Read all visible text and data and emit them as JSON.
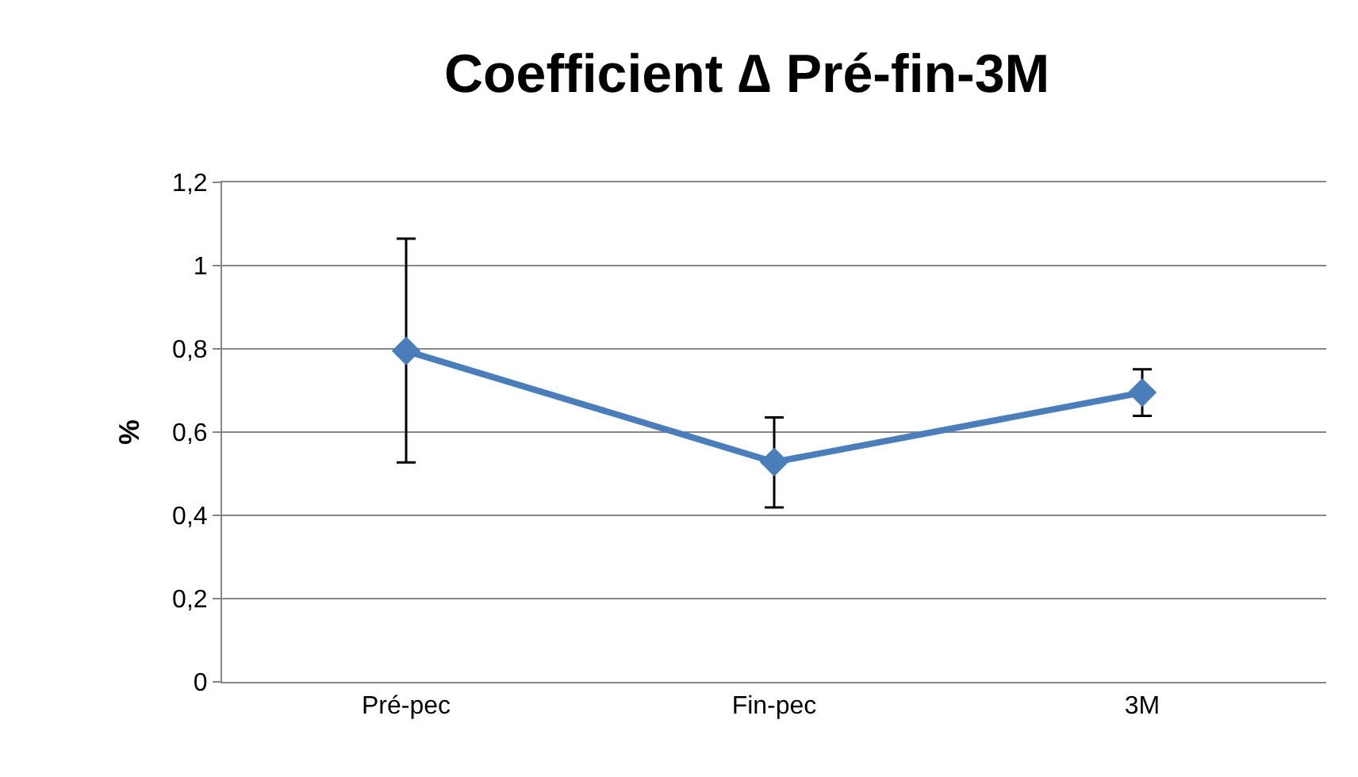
{
  "chart_data": {
    "type": "line",
    "title": "Coefficient ∆ Pré-fin-3M",
    "ylabel": "%",
    "categories": [
      "Pré-pec",
      "Fin-pec",
      "3M"
    ],
    "series": [
      {
        "color": "#4a7ebb",
        "values": [
          0.795,
          0.528,
          0.695
        ],
        "errors": [
          [
            0.527,
            1.065
          ],
          [
            0.419,
            0.635
          ],
          [
            0.639,
            0.751
          ]
        ]
      }
    ],
    "ylim": [
      0,
      1.2
    ],
    "yticks": [
      {
        "value": 0,
        "label": "0"
      },
      {
        "value": 0.2,
        "label": "0,2"
      },
      {
        "value": 0.4,
        "label": "0,4"
      },
      {
        "value": 0.6,
        "label": "0,6"
      },
      {
        "value": 0.8,
        "label": "0,8"
      },
      {
        "value": 1,
        "label": "1"
      },
      {
        "value": 1.2,
        "label": "1,2"
      }
    ],
    "grid": "y",
    "marker": "diamond",
    "line_style": "solid"
  }
}
